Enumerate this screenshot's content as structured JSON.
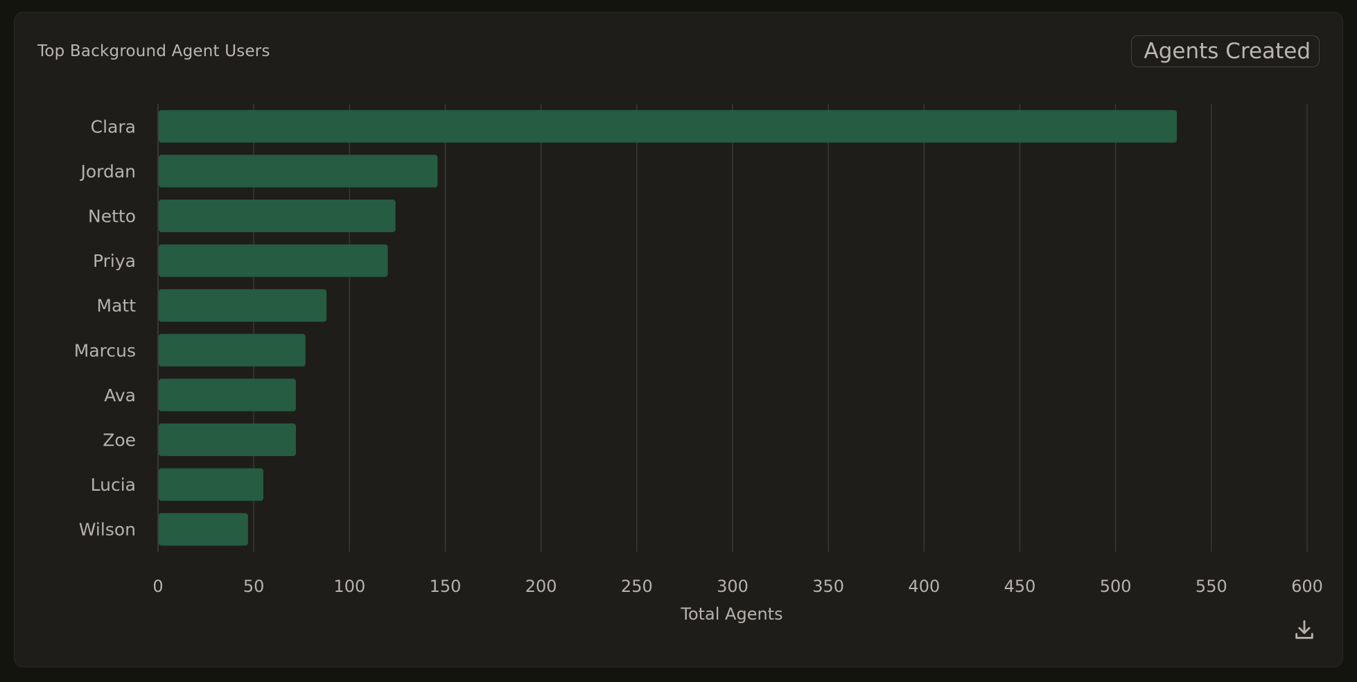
{
  "card": {
    "title": "Top Background Agent Users"
  },
  "metric_selector": {
    "value": "Agents Created"
  },
  "download": {
    "icon": "download-icon"
  },
  "colors": {
    "bar": "#255c42",
    "grid": "#3a3934",
    "text": "#b5b3ac"
  },
  "chart_data": {
    "type": "bar",
    "orientation": "horizontal",
    "title": "",
    "xlabel": "Total Agents",
    "ylabel": "",
    "categories": [
      "Clara",
      "Jordan",
      "Netto",
      "Priya",
      "Matt",
      "Marcus",
      "Ava",
      "Zoe",
      "Lucia",
      "Wilson"
    ],
    "values": [
      532,
      146,
      124,
      120,
      88,
      77,
      72,
      72,
      55,
      47
    ],
    "xlim": [
      0,
      600
    ],
    "xticks": [
      0,
      50,
      100,
      150,
      200,
      250,
      300,
      350,
      400,
      450,
      500,
      550,
      600
    ],
    "grid": "vertical"
  }
}
